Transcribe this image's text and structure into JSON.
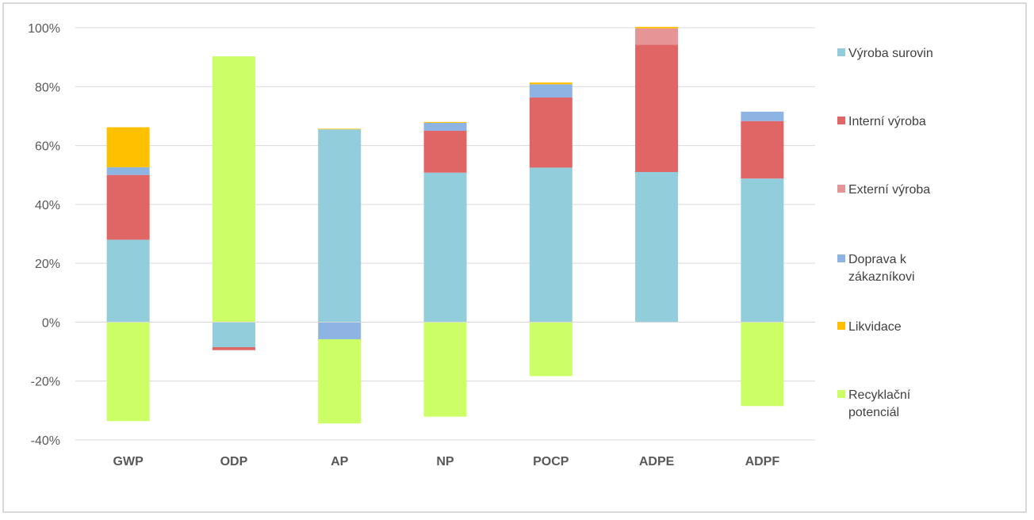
{
  "chart_data": {
    "type": "bar",
    "stacked": true,
    "categories": [
      "GWP",
      "ODP",
      "AP",
      "NP",
      "POCP",
      "ADPE",
      "ADPF"
    ],
    "ylim": [
      -40,
      100
    ],
    "yticks": [
      -40,
      -20,
      0,
      20,
      40,
      60,
      80,
      100
    ],
    "ytick_labels": [
      "-40%",
      "-20%",
      "0%",
      "20%",
      "40%",
      "60%",
      "80%",
      "100%"
    ],
    "grid": true,
    "legend_position": "right",
    "series": [
      {
        "name": "Výroba surovin",
        "color": "#92cddc",
        "values": [
          28,
          -8.5,
          65.5,
          50.8,
          52.5,
          51,
          48.8
        ]
      },
      {
        "name": "Interní výroba",
        "color": "#e06666",
        "values": [
          22,
          -1,
          0,
          14.2,
          23.8,
          43.2,
          19.5
        ]
      },
      {
        "name": "Externí výroba",
        "color": "#e59595",
        "values": [
          0,
          0,
          0,
          0,
          0,
          5.6,
          0
        ]
      },
      {
        "name": "Doprava k zákazníkovi",
        "color": "#8eb4e3",
        "values": [
          2.6,
          0,
          -5.8,
          2.7,
          4.5,
          0,
          3.2
        ]
      },
      {
        "name": "Likvidace",
        "color": "#ffc000",
        "values": [
          13.6,
          0,
          0.2,
          0.3,
          0.6,
          0.5,
          0
        ]
      },
      {
        "name": "Recyklační potenciál",
        "color": "#ccff66",
        "values": [
          -33.6,
          90.3,
          -28.6,
          -32.1,
          -18.3,
          0,
          -28.5
        ]
      }
    ]
  }
}
